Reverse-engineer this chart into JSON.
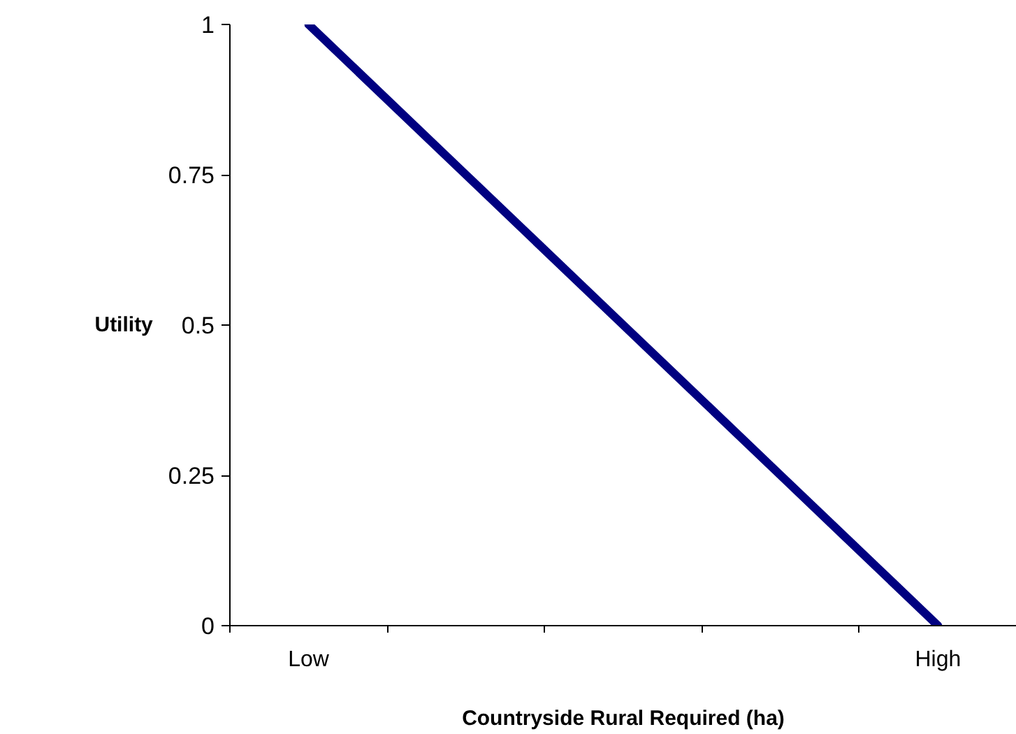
{
  "chart_data": {
    "type": "line",
    "xlabel": "Countryside Rural Required (ha)",
    "ylabel": "Utility",
    "categories": [
      "Low",
      null,
      null,
      null,
      "High"
    ],
    "series": [
      {
        "color": "#000080",
        "values": [
          1,
          0.75,
          0.5,
          0.25,
          0
        ]
      }
    ],
    "ylim": [
      0,
      1
    ],
    "yticks": [
      0,
      0.25,
      0.5,
      0.75,
      1
    ],
    "marker": "none",
    "line_style": "solid"
  }
}
